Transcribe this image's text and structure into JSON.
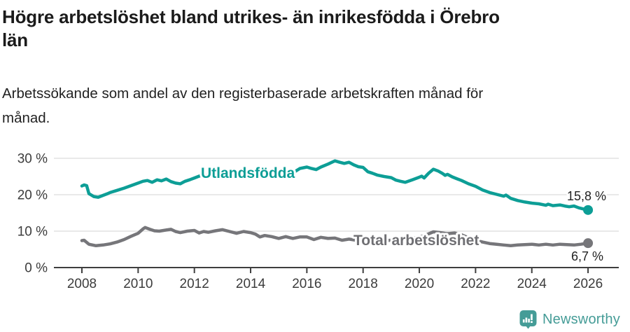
{
  "header": {
    "title_lines": [
      "Högre arbetslöshet bland utrikes- än inrikesfödda i Örebro",
      "län"
    ],
    "subtitle_lines": [
      "Arbetssökande som andel av den registerbaserade arbetskraften månad för",
      "månad."
    ]
  },
  "chart_data": {
    "type": "line",
    "title": "Högre arbetslöshet bland utrikes- än inrikesfödda i Örebro län",
    "subtitle": "Arbetssökande som andel av den registerbaserade arbetskraften månad för månad.",
    "grid": true,
    "legend_position": "inline-labels-on-lines",
    "x_axis": {
      "ticks": [
        2008,
        2010,
        2012,
        2014,
        2016,
        2018,
        2020,
        2022,
        2024,
        2026
      ],
      "range": [
        2007.0,
        2027.1
      ]
    },
    "y_axis": {
      "ticks": [
        {
          "v": 0,
          "label": "0 %"
        },
        {
          "v": 10,
          "label": "10 %"
        },
        {
          "v": 20,
          "label": "20 %"
        },
        {
          "v": 30,
          "label": "30 %"
        }
      ],
      "range": [
        0,
        32
      ]
    },
    "series": [
      {
        "name": "Utlandsfödda",
        "color": "#0d9e96",
        "end_label": "15,8 %",
        "end_value": 15.8,
        "points": [
          [
            2008.0,
            22.4
          ],
          [
            2008.08,
            22.7
          ],
          [
            2008.17,
            22.5
          ],
          [
            2008.25,
            20.3
          ],
          [
            2008.42,
            19.5
          ],
          [
            2008.58,
            19.3
          ],
          [
            2008.75,
            19.8
          ],
          [
            2008.92,
            20.3
          ],
          [
            2009.0,
            20.6
          ],
          [
            2009.25,
            21.2
          ],
          [
            2009.5,
            21.8
          ],
          [
            2009.75,
            22.5
          ],
          [
            2010.0,
            23.2
          ],
          [
            2010.17,
            23.7
          ],
          [
            2010.33,
            23.9
          ],
          [
            2010.5,
            23.4
          ],
          [
            2010.67,
            24.1
          ],
          [
            2010.83,
            23.8
          ],
          [
            2011.0,
            24.3
          ],
          [
            2011.17,
            23.6
          ],
          [
            2011.33,
            23.2
          ],
          [
            2011.5,
            23.0
          ],
          [
            2011.67,
            23.7
          ],
          [
            2011.83,
            24.1
          ],
          [
            2012.0,
            24.6
          ],
          [
            2012.17,
            25.1
          ],
          [
            2012.33,
            25.5
          ],
          [
            2012.5,
            25.1
          ],
          [
            2012.67,
            25.2
          ],
          [
            2012.83,
            25.5
          ],
          [
            2013.0,
            26.0
          ],
          [
            2013.17,
            26.6
          ],
          [
            2013.33,
            26.0
          ],
          [
            2013.5,
            25.6
          ],
          [
            2013.75,
            25.9
          ],
          [
            2014.0,
            26.2
          ],
          [
            2014.25,
            25.5
          ],
          [
            2014.5,
            24.9
          ],
          [
            2014.75,
            25.4
          ],
          [
            2015.0,
            26.0
          ],
          [
            2015.25,
            26.4
          ],
          [
            2015.5,
            26.0
          ],
          [
            2015.75,
            27.2
          ],
          [
            2016.0,
            27.6
          ],
          [
            2016.17,
            27.2
          ],
          [
            2016.33,
            26.9
          ],
          [
            2016.5,
            27.6
          ],
          [
            2016.75,
            28.4
          ],
          [
            2017.0,
            29.3
          ],
          [
            2017.17,
            28.9
          ],
          [
            2017.33,
            28.6
          ],
          [
            2017.5,
            28.9
          ],
          [
            2017.67,
            28.2
          ],
          [
            2017.83,
            27.7
          ],
          [
            2018.0,
            27.5
          ],
          [
            2018.17,
            26.3
          ],
          [
            2018.33,
            25.9
          ],
          [
            2018.5,
            25.4
          ],
          [
            2018.75,
            25.0
          ],
          [
            2019.0,
            24.7
          ],
          [
            2019.17,
            24.0
          ],
          [
            2019.33,
            23.7
          ],
          [
            2019.5,
            23.4
          ],
          [
            2019.75,
            24.1
          ],
          [
            2020.0,
            24.8
          ],
          [
            2020.08,
            25.1
          ],
          [
            2020.17,
            24.6
          ],
          [
            2020.33,
            25.9
          ],
          [
            2020.5,
            27.0
          ],
          [
            2020.67,
            26.5
          ],
          [
            2020.83,
            25.8
          ],
          [
            2020.92,
            25.3
          ],
          [
            2021.0,
            25.6
          ],
          [
            2021.17,
            24.9
          ],
          [
            2021.33,
            24.4
          ],
          [
            2021.5,
            23.9
          ],
          [
            2021.75,
            23.0
          ],
          [
            2022.0,
            22.3
          ],
          [
            2022.25,
            21.3
          ],
          [
            2022.5,
            20.6
          ],
          [
            2022.75,
            20.1
          ],
          [
            2023.0,
            19.6
          ],
          [
            2023.08,
            19.9
          ],
          [
            2023.25,
            19.0
          ],
          [
            2023.5,
            18.4
          ],
          [
            2023.75,
            18.0
          ],
          [
            2024.0,
            17.7
          ],
          [
            2024.25,
            17.5
          ],
          [
            2024.5,
            17.1
          ],
          [
            2024.58,
            17.4
          ],
          [
            2024.75,
            17.0
          ],
          [
            2025.0,
            17.2
          ],
          [
            2025.17,
            16.9
          ],
          [
            2025.33,
            16.7
          ],
          [
            2025.5,
            16.9
          ],
          [
            2025.67,
            16.4
          ],
          [
            2025.83,
            16.1
          ],
          [
            2026.0,
            15.8
          ]
        ]
      },
      {
        "name": "Total arbetslöshet",
        "color": "#76767a",
        "end_label": "6,7 %",
        "end_value": 6.7,
        "points": [
          [
            2008.0,
            7.4
          ],
          [
            2008.08,
            7.5
          ],
          [
            2008.25,
            6.4
          ],
          [
            2008.5,
            6.0
          ],
          [
            2008.75,
            6.2
          ],
          [
            2009.0,
            6.5
          ],
          [
            2009.25,
            7.0
          ],
          [
            2009.5,
            7.7
          ],
          [
            2009.75,
            8.6
          ],
          [
            2010.0,
            9.4
          ],
          [
            2010.17,
            10.6
          ],
          [
            2010.25,
            11.0
          ],
          [
            2010.42,
            10.5
          ],
          [
            2010.58,
            10.1
          ],
          [
            2010.75,
            10.0
          ],
          [
            2011.0,
            10.3
          ],
          [
            2011.17,
            10.5
          ],
          [
            2011.33,
            9.9
          ],
          [
            2011.5,
            9.6
          ],
          [
            2011.75,
            10.0
          ],
          [
            2012.0,
            10.2
          ],
          [
            2012.17,
            9.5
          ],
          [
            2012.33,
            9.9
          ],
          [
            2012.5,
            9.7
          ],
          [
            2012.75,
            10.1
          ],
          [
            2013.0,
            10.4
          ],
          [
            2013.25,
            9.9
          ],
          [
            2013.5,
            9.4
          ],
          [
            2013.75,
            9.9
          ],
          [
            2014.0,
            9.6
          ],
          [
            2014.17,
            9.2
          ],
          [
            2014.33,
            8.4
          ],
          [
            2014.5,
            8.8
          ],
          [
            2014.75,
            8.5
          ],
          [
            2015.0,
            8.0
          ],
          [
            2015.25,
            8.5
          ],
          [
            2015.5,
            8.0
          ],
          [
            2015.75,
            8.4
          ],
          [
            2016.0,
            8.4
          ],
          [
            2016.25,
            7.7
          ],
          [
            2016.5,
            8.3
          ],
          [
            2016.75,
            8.0
          ],
          [
            2017.0,
            8.1
          ],
          [
            2017.25,
            7.5
          ],
          [
            2017.5,
            7.8
          ],
          [
            2017.75,
            7.5
          ],
          [
            2018.0,
            7.4
          ],
          [
            2018.25,
            7.2
          ],
          [
            2018.5,
            7.3
          ],
          [
            2018.75,
            7.4
          ],
          [
            2019.0,
            7.5
          ],
          [
            2019.25,
            7.6
          ],
          [
            2019.5,
            7.8
          ],
          [
            2019.75,
            8.1
          ],
          [
            2020.0,
            8.3
          ],
          [
            2020.25,
            9.0
          ],
          [
            2020.5,
            9.8
          ],
          [
            2020.75,
            9.6
          ],
          [
            2021.0,
            9.3
          ],
          [
            2021.25,
            9.5
          ],
          [
            2021.5,
            9.0
          ],
          [
            2021.75,
            8.2
          ],
          [
            2022.0,
            7.5
          ],
          [
            2022.25,
            7.0
          ],
          [
            2022.5,
            6.6
          ],
          [
            2022.75,
            6.4
          ],
          [
            2023.0,
            6.2
          ],
          [
            2023.25,
            6.0
          ],
          [
            2023.5,
            6.2
          ],
          [
            2023.75,
            6.3
          ],
          [
            2024.0,
            6.4
          ],
          [
            2024.25,
            6.2
          ],
          [
            2024.5,
            6.4
          ],
          [
            2024.75,
            6.2
          ],
          [
            2025.0,
            6.4
          ],
          [
            2025.25,
            6.3
          ],
          [
            2025.5,
            6.2
          ],
          [
            2025.75,
            6.4
          ],
          [
            2026.0,
            6.7
          ]
        ]
      }
    ],
    "colors": {
      "grid": "#dcdcdc",
      "axis": "#3f3f3f",
      "tick_label": "#3c3c3c",
      "end_label": "#222222"
    }
  },
  "footer": {
    "brand": "Newsworthy",
    "brand_color": "#459c97",
    "icon": "newsworthy-logo-icon"
  }
}
